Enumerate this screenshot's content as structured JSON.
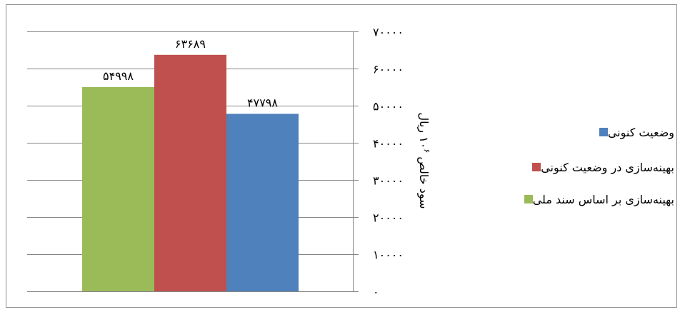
{
  "chart_data": {
    "type": "bar",
    "series": [
      {
        "name": "بهینه‌سازی بر اساس سند ملی",
        "value": 54998,
        "label": "۵۴۹۹۸",
        "color": "#9BBB59"
      },
      {
        "name": "بهینه‌سازی در وضعیت کنونی",
        "value": 63689,
        "label": "۶۳۶۸۹",
        "color": "#C0504D"
      },
      {
        "name": "وضعیت کنونی",
        "value": 47798,
        "label": "۴۷۷۹۸",
        "color": "#4F81BD"
      }
    ],
    "ylabel": "سود خالص ۱۰۶ ریال",
    "ylabel_main": "سود خالص ۱۰",
    "ylabel_exponent": "۶",
    "ylabel_unit": " ریال",
    "ylim": [
      0,
      70000
    ],
    "y_ticks": [
      0,
      10000,
      20000,
      30000,
      40000,
      50000,
      60000,
      70000
    ],
    "y_tick_labels": [
      "۰",
      "۱۰۰۰۰",
      "۲۰۰۰۰",
      "۳۰۰۰۰",
      "۴۰۰۰۰",
      "۵۰۰۰۰",
      "۶۰۰۰۰",
      "۷۰۰۰۰"
    ],
    "y_axis_side": "right",
    "grid": true,
    "legend_position": "right",
    "legend_order": [
      2,
      1,
      0
    ]
  }
}
